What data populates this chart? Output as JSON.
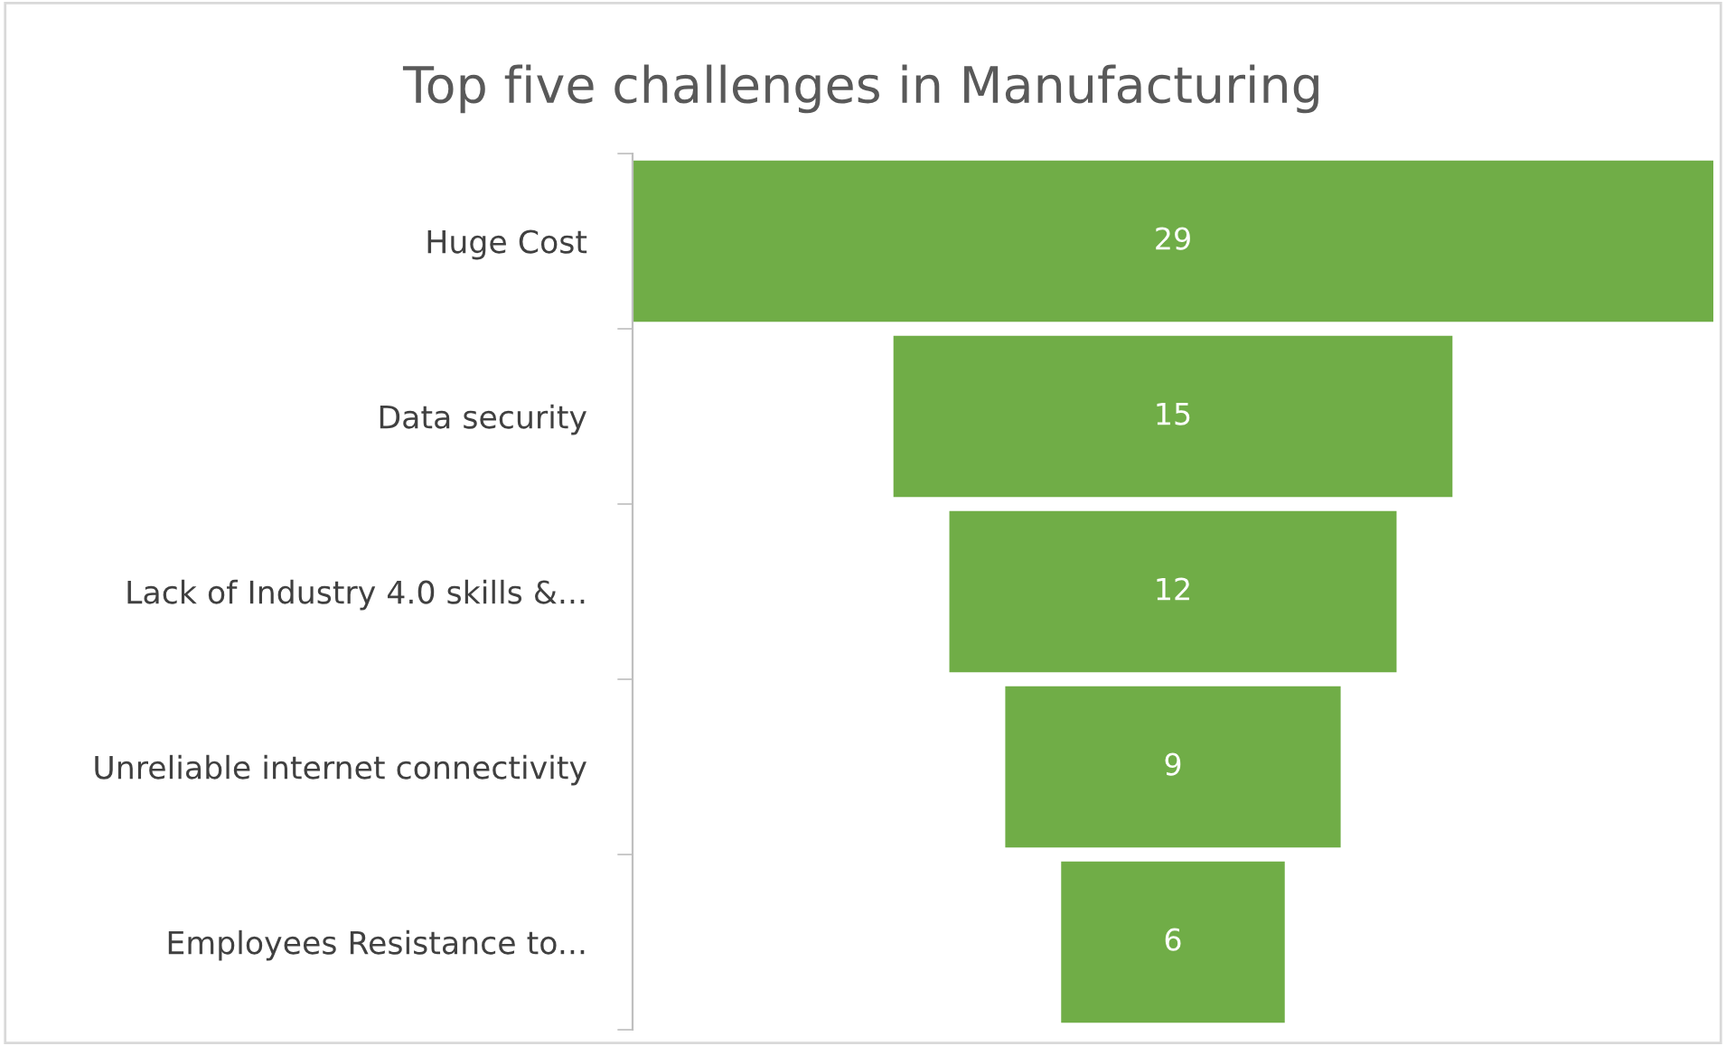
{
  "chart_data": {
    "type": "other",
    "title": "Top five challenges in Manufacturing",
    "categories": [
      "Huge Cost",
      "Data security",
      "Lack of Industry 4.0 skills &...",
      "Unreliable internet connectivity",
      "Employees Resistance to..."
    ],
    "values": [
      29,
      15,
      12,
      9,
      6
    ],
    "color": "#70ad47",
    "data_labels": true
  }
}
